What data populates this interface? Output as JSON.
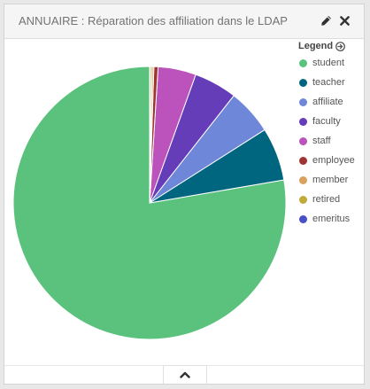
{
  "panel": {
    "title": "ANNUAIRE : Réparation des affiliation dans le LDAP",
    "edit_icon": "pencil-icon",
    "close_icon": "close-icon",
    "collapse_icon": "chevron-up-icon"
  },
  "legend": {
    "title": "Legend",
    "toggle_icon": "arrow-circle-right-icon"
  },
  "chart_data": {
    "type": "pie",
    "title": "",
    "legend_position": "top-right",
    "slices": [
      {
        "label": "student",
        "value": 77.7,
        "color": "#5bc27d"
      },
      {
        "label": "teacher",
        "value": 6.3,
        "color": "#006680"
      },
      {
        "label": "affiliate",
        "value": 5.4,
        "color": "#6f87d8"
      },
      {
        "label": "faculty",
        "value": 5.1,
        "color": "#663db8"
      },
      {
        "label": "staff",
        "value": 4.5,
        "color": "#bc52bc"
      },
      {
        "label": "employee",
        "value": 0.5,
        "color": "#9e3533"
      },
      {
        "label": "member",
        "value": 0.2,
        "color": "#daa05d"
      },
      {
        "label": "retired",
        "value": 0.2,
        "color": "#bfaa3a"
      },
      {
        "label": "emeritus",
        "value": 0.1,
        "color": "#4850c6"
      }
    ]
  }
}
